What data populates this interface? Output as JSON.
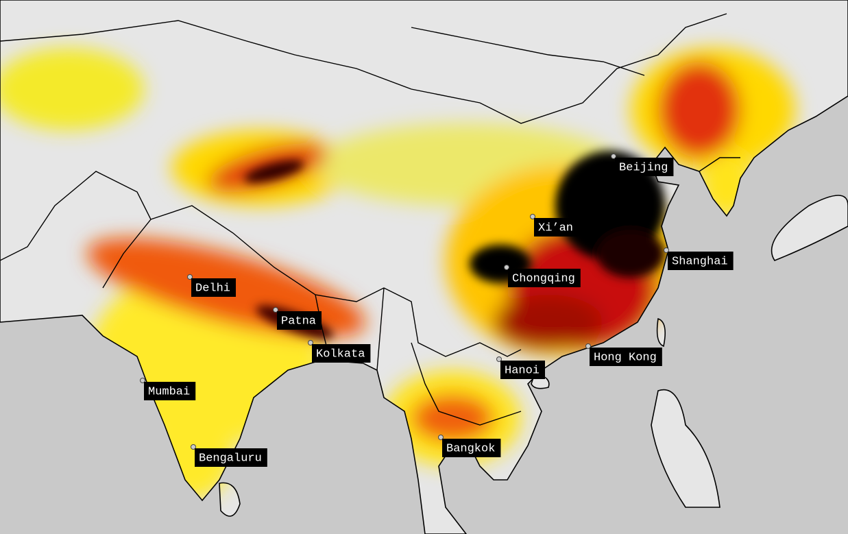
{
  "map": {
    "cities": [
      "Beijing",
      "Xi’an",
      "Shanghai",
      "Chongqing",
      "Delhi",
      "Patna",
      "Kolkata",
      "Hong Kong",
      "Hanoi",
      "Mumbai",
      "Bengaluru",
      "Bangkok"
    ]
  }
}
